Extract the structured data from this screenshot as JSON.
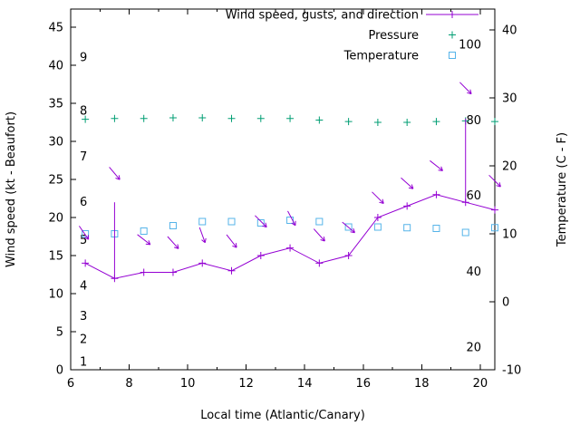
{
  "chart_data": {
    "type": "line",
    "title": "",
    "xlabel": "Local time (Atlantic/Canary)",
    "ylabel_left": "Wind speed (kt - Beaufort)",
    "ylabel_right": "Temperature (C - F)",
    "grid": false,
    "legend_position": "top-right-inside",
    "x_range": [
      6,
      20.5
    ],
    "x_major_ticks": [
      6,
      8,
      10,
      12,
      14,
      16,
      18,
      20
    ],
    "x_minor_ticks": [
      7,
      9,
      11,
      13,
      15,
      17,
      19
    ],
    "left_axis": {
      "unit": "kt",
      "range": [
        0,
        47.4
      ],
      "ticks": [
        0,
        5,
        10,
        15,
        20,
        25,
        30,
        35,
        40,
        45
      ],
      "beaufort_labels": [
        {
          "beaufort": "1",
          "kt": 1
        },
        {
          "beaufort": "2",
          "kt": 4
        },
        {
          "beaufort": "3",
          "kt": 7
        },
        {
          "beaufort": "4",
          "kt": 11
        },
        {
          "beaufort": "5",
          "kt": 17
        },
        {
          "beaufort": "6",
          "kt": 22
        },
        {
          "beaufort": "7",
          "kt": 28
        },
        {
          "beaufort": "8",
          "kt": 34
        },
        {
          "beaufort": "9",
          "kt": 41
        }
      ]
    },
    "right_axis": {
      "unit": "C",
      "range": [
        -10,
        43.1
      ],
      "ticks": [
        -10,
        0,
        10,
        20,
        30,
        40
      ],
      "fahrenheit_labels": [
        {
          "f": "20",
          "c": -6.7
        },
        {
          "f": "40",
          "c": 4.4
        },
        {
          "f": "60",
          "c": 15.6
        },
        {
          "f": "80",
          "c": 26.7
        },
        {
          "f": "100",
          "c": 37.8
        }
      ]
    },
    "series": {
      "wind": {
        "name": "Wind speed, gusts, and direction",
        "color": "#9400d3",
        "x": [
          6.5,
          7.5,
          8.5,
          9.5,
          10.5,
          11.5,
          12.5,
          13.5,
          14.5,
          15.5,
          16.5,
          17.5,
          18.5,
          19.5,
          20.5
        ],
        "speed_kt": [
          14,
          12,
          12.8,
          12.8,
          14,
          13,
          15,
          16,
          14,
          15,
          20,
          21.5,
          23,
          22,
          21
        ],
        "gust_bars": [
          {
            "x": 7.5,
            "from_kt": 12,
            "to_kt": 22
          },
          {
            "x": 19.5,
            "from_kt": 22,
            "to_kt": 33
          }
        ],
        "direction_arrows": [
          {
            "x": 6.45,
            "kt": 18.0,
            "angle_deg": 55
          },
          {
            "x": 7.5,
            "kt": 25.8,
            "angle_deg": 50
          },
          {
            "x": 8.5,
            "kt": 17.1,
            "angle_deg": 38
          },
          {
            "x": 9.5,
            "kt": 16.7,
            "angle_deg": 48
          },
          {
            "x": 10.5,
            "kt": 17.7,
            "angle_deg": 70
          },
          {
            "x": 11.5,
            "kt": 16.9,
            "angle_deg": 52
          },
          {
            "x": 12.5,
            "kt": 19.5,
            "angle_deg": 45
          },
          {
            "x": 13.55,
            "kt": 19.9,
            "angle_deg": 62
          },
          {
            "x": 14.5,
            "kt": 17.7,
            "angle_deg": 48
          },
          {
            "x": 15.5,
            "kt": 18.7,
            "angle_deg": 40
          },
          {
            "x": 16.5,
            "kt": 22.6,
            "angle_deg": 45
          },
          {
            "x": 17.5,
            "kt": 24.5,
            "angle_deg": 42
          },
          {
            "x": 18.5,
            "kt": 26.8,
            "angle_deg": 38
          },
          {
            "x": 19.5,
            "kt": 37.0,
            "angle_deg": 45
          },
          {
            "x": 20.5,
            "kt": 24.8,
            "angle_deg": 45
          }
        ]
      },
      "pressure": {
        "name": "Pressure",
        "color": "#009e73",
        "x": [
          6.5,
          7.5,
          8.5,
          9.5,
          10.5,
          11.5,
          12.5,
          13.5,
          14.5,
          15.5,
          16.5,
          17.5,
          18.5,
          19.5,
          20.5
        ],
        "values_on_left_axis": [
          32.9,
          33.0,
          33.0,
          33.1,
          33.1,
          33.0,
          33.0,
          33.0,
          32.8,
          32.6,
          32.5,
          32.5,
          32.6,
          32.7,
          32.6
        ]
      },
      "temperature": {
        "name": "Temperature",
        "color": "#56b4e9",
        "x": [
          6.5,
          7.5,
          8.5,
          9.5,
          10.5,
          11.5,
          12.5,
          13.5,
          14.5,
          15.5,
          16.5,
          17.5,
          18.5,
          19.5,
          20.5
        ],
        "c": [
          10.0,
          10.0,
          10.4,
          11.2,
          11.8,
          11.8,
          11.6,
          12.0,
          11.8,
          11.0,
          11.0,
          10.9,
          10.8,
          10.2,
          10.9
        ]
      }
    },
    "legend": [
      {
        "label": "Wind speed, gusts, and direction",
        "series": "wind",
        "sample": "line-plus"
      },
      {
        "label": "Pressure",
        "series": "pressure",
        "sample": "plus"
      },
      {
        "label": "Temperature",
        "series": "temperature",
        "sample": "square"
      }
    ]
  }
}
